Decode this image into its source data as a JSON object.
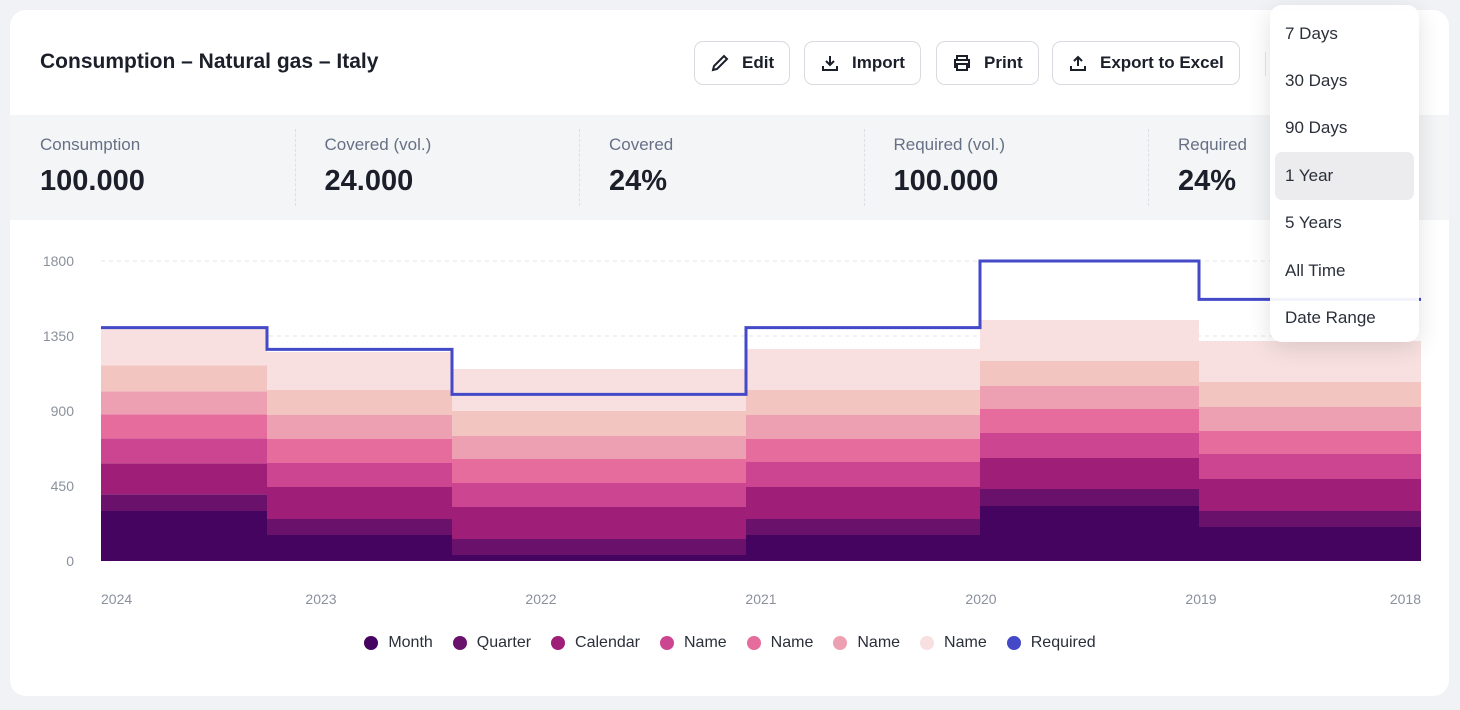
{
  "header": {
    "title": "Consumption – Natural gas – Italy",
    "buttons": [
      {
        "label": "Edit",
        "icon": "pencil-icon"
      },
      {
        "label": "Import",
        "icon": "download-icon"
      },
      {
        "label": "Print",
        "icon": "printer-icon"
      },
      {
        "label": "Export to Excel",
        "icon": "upload-icon"
      }
    ]
  },
  "stats": [
    {
      "label": "Consumption",
      "value": "100.000"
    },
    {
      "label": "Covered (vol.)",
      "value": "24.000"
    },
    {
      "label": "Covered",
      "value": "24%"
    },
    {
      "label": "Required (vol.)",
      "value": "100.000"
    },
    {
      "label": "Required",
      "value": "24%"
    }
  ],
  "dropdown": {
    "options": [
      "7 Days",
      "30 Days",
      "90 Days",
      "1 Year",
      "5 Years",
      "All Time",
      "Date Range"
    ],
    "selected": "1 Year"
  },
  "chart_data": {
    "type": "area",
    "stacked": true,
    "step": true,
    "ylim": [
      0,
      1800
    ],
    "yticks": [
      "0",
      "450",
      "900",
      "1350",
      "1800"
    ],
    "xticks": [
      "2024",
      "2023",
      "2022",
      "2021",
      "2020",
      "2019",
      "2018"
    ],
    "grid": "horizontal-dashed",
    "legend_position": "bottom",
    "periods": 6,
    "series": [
      {
        "name": "Month",
        "color": "#44045f",
        "values": [
          300,
          156,
          36,
          156,
          330,
          204
        ]
      },
      {
        "name": "Quarter",
        "color": "#6a116c",
        "values": [
          100,
          96,
          96,
          96,
          102,
          96
        ]
      },
      {
        "name": "Calendar",
        "color": "#9e1e78",
        "values": [
          186,
          192,
          192,
          192,
          186,
          192
        ]
      },
      {
        "name": "Name",
        "color": "#cc4590",
        "values": [
          150,
          144,
          144,
          150,
          150,
          150
        ]
      },
      {
        "name": "Name",
        "color": "#e56c9c",
        "values": [
          144,
          144,
          144,
          138,
          144,
          138
        ]
      },
      {
        "name": "Name",
        "color": "#eda0b2",
        "values": [
          138,
          144,
          138,
          144,
          138,
          144
        ]
      },
      {
        "color": "#f3c5c1",
        "values": [
          156,
          150,
          150,
          150,
          150,
          150
        ]
      },
      {
        "name": "Name",
        "color": "#f8e0e0",
        "values": [
          222,
          228,
          252,
          246,
          246,
          246
        ]
      }
    ],
    "line": {
      "name": "Required",
      "color": "#4349c7",
      "values": [
        1400,
        1270,
        1000,
        1400,
        1800,
        1570
      ]
    }
  }
}
